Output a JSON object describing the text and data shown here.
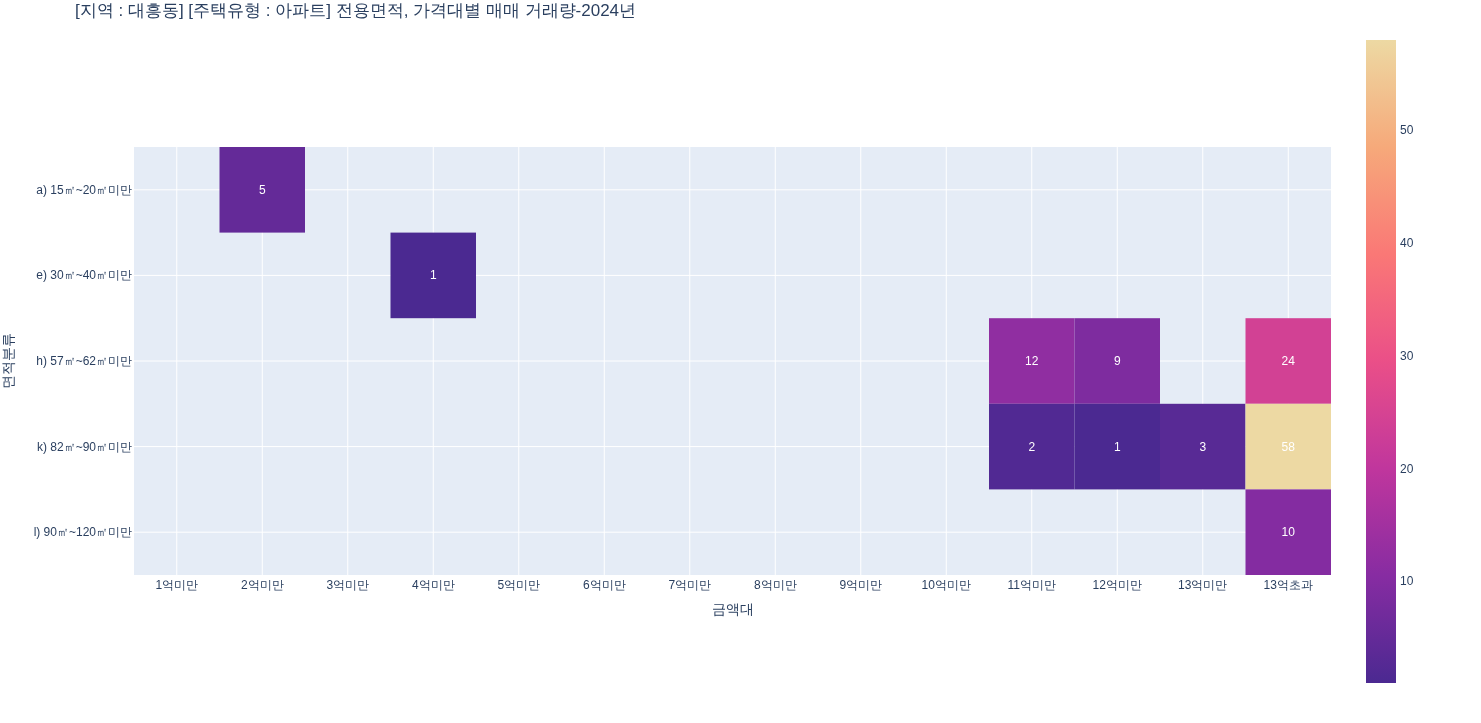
{
  "chart_data": {
    "type": "heatmap",
    "title": "[지역 : 대흥동] [주택유형 : 아파트] 전용면적, 가격대별 매매 거래량-2024년",
    "xlabel": "금액대",
    "ylabel": "면적분류",
    "categories": [
      "1억미만",
      "2억미만",
      "3억미만",
      "4억미만",
      "5억미만",
      "6억미만",
      "7억미만",
      "8억미만",
      "9억미만",
      "10억미만",
      "11억미만",
      "12억미만",
      "13억미만",
      "13억초과"
    ],
    "y_categories": [
      "a) 15㎡~20㎡미만",
      "e) 30㎡~40㎡미만",
      "h) 57㎡~62㎡미만",
      "k) 82㎡~90㎡미만",
      "l) 90㎡~120㎡미만"
    ],
    "cells": [
      [
        null,
        5,
        null,
        null,
        null,
        null,
        null,
        null,
        null,
        null,
        null,
        null,
        null,
        null
      ],
      [
        null,
        null,
        null,
        1,
        null,
        null,
        null,
        null,
        null,
        null,
        null,
        null,
        null,
        null
      ],
      [
        null,
        null,
        null,
        null,
        null,
        null,
        null,
        null,
        null,
        null,
        12,
        9,
        null,
        24
      ],
      [
        null,
        null,
        null,
        null,
        null,
        null,
        null,
        null,
        null,
        null,
        2,
        1,
        3,
        58
      ],
      [
        null,
        null,
        null,
        null,
        null,
        null,
        null,
        null,
        null,
        null,
        null,
        null,
        null,
        10
      ]
    ],
    "data_labels": true,
    "grid": true,
    "clim": [
      1,
      58
    ],
    "cticks": [
      10,
      20,
      30,
      40,
      50
    ]
  }
}
